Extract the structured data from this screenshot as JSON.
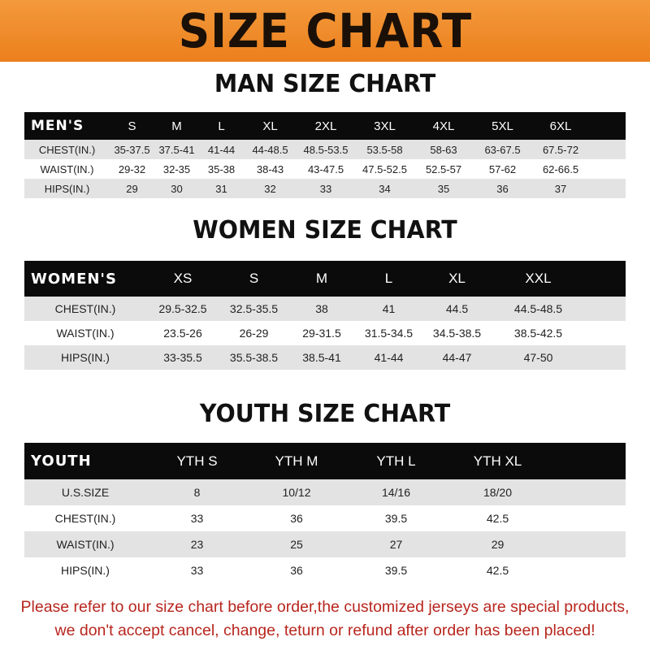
{
  "banner_title": "SIZE CHART",
  "men": {
    "title": "MAN SIZE CHART",
    "header": [
      "MEN'S",
      "S",
      "M",
      "L",
      "XL",
      "2XL",
      "3XL",
      "4XL",
      "5XL",
      "6XL"
    ],
    "rows": [
      [
        "CHEST(IN.)",
        "35-37.5",
        "37.5-41",
        "41-44",
        "44-48.5",
        "48.5-53.5",
        "53.5-58",
        "58-63",
        "63-67.5",
        "67.5-72"
      ],
      [
        "WAIST(IN.)",
        "29-32",
        "32-35",
        "35-38",
        "38-43",
        "43-47.5",
        "47.5-52.5",
        "52.5-57",
        "57-62",
        "62-66.5"
      ],
      [
        "HIPS(IN.)",
        "29",
        "30",
        "31",
        "32",
        "33",
        "34",
        "35",
        "36",
        "37"
      ]
    ]
  },
  "women": {
    "title": "WOMEN SIZE CHART",
    "header": [
      "WOMEN'S",
      "XS",
      "S",
      "M",
      "L",
      "XL",
      "XXL"
    ],
    "rows": [
      [
        "CHEST(IN.)",
        "29.5-32.5",
        "32.5-35.5",
        "38",
        "41",
        "44.5",
        "44.5-48.5"
      ],
      [
        "WAIST(IN.)",
        "23.5-26",
        "26-29",
        "29-31.5",
        "31.5-34.5",
        "34.5-38.5",
        "38.5-42.5"
      ],
      [
        "HIPS(IN.)",
        "33-35.5",
        "35.5-38.5",
        "38.5-41",
        "41-44",
        "44-47",
        "47-50"
      ]
    ]
  },
  "youth": {
    "title": "YOUTH SIZE CHART",
    "header": [
      "YOUTH",
      "YTH S",
      "YTH M",
      "YTH L",
      "YTH XL"
    ],
    "rows": [
      [
        "U.S.SIZE",
        "8",
        "10/12",
        "14/16",
        "18/20"
      ],
      [
        "CHEST(IN.)",
        "33",
        "36",
        "39.5",
        "42.5"
      ],
      [
        "WAIST(IN.)",
        "23",
        "25",
        "27",
        "29"
      ],
      [
        "HIPS(IN.)",
        "33",
        "36",
        "39.5",
        "42.5"
      ]
    ]
  },
  "notice": {
    "line1": "Please refer to our size chart before order,the customized jerseys are special products,",
    "line2": "we don't accept cancel, change, teturn or refund after order has been placed!"
  },
  "colors": {
    "banner": "#ef8a26",
    "header_row": "#0b0b0b",
    "notice": "#b8261e"
  }
}
